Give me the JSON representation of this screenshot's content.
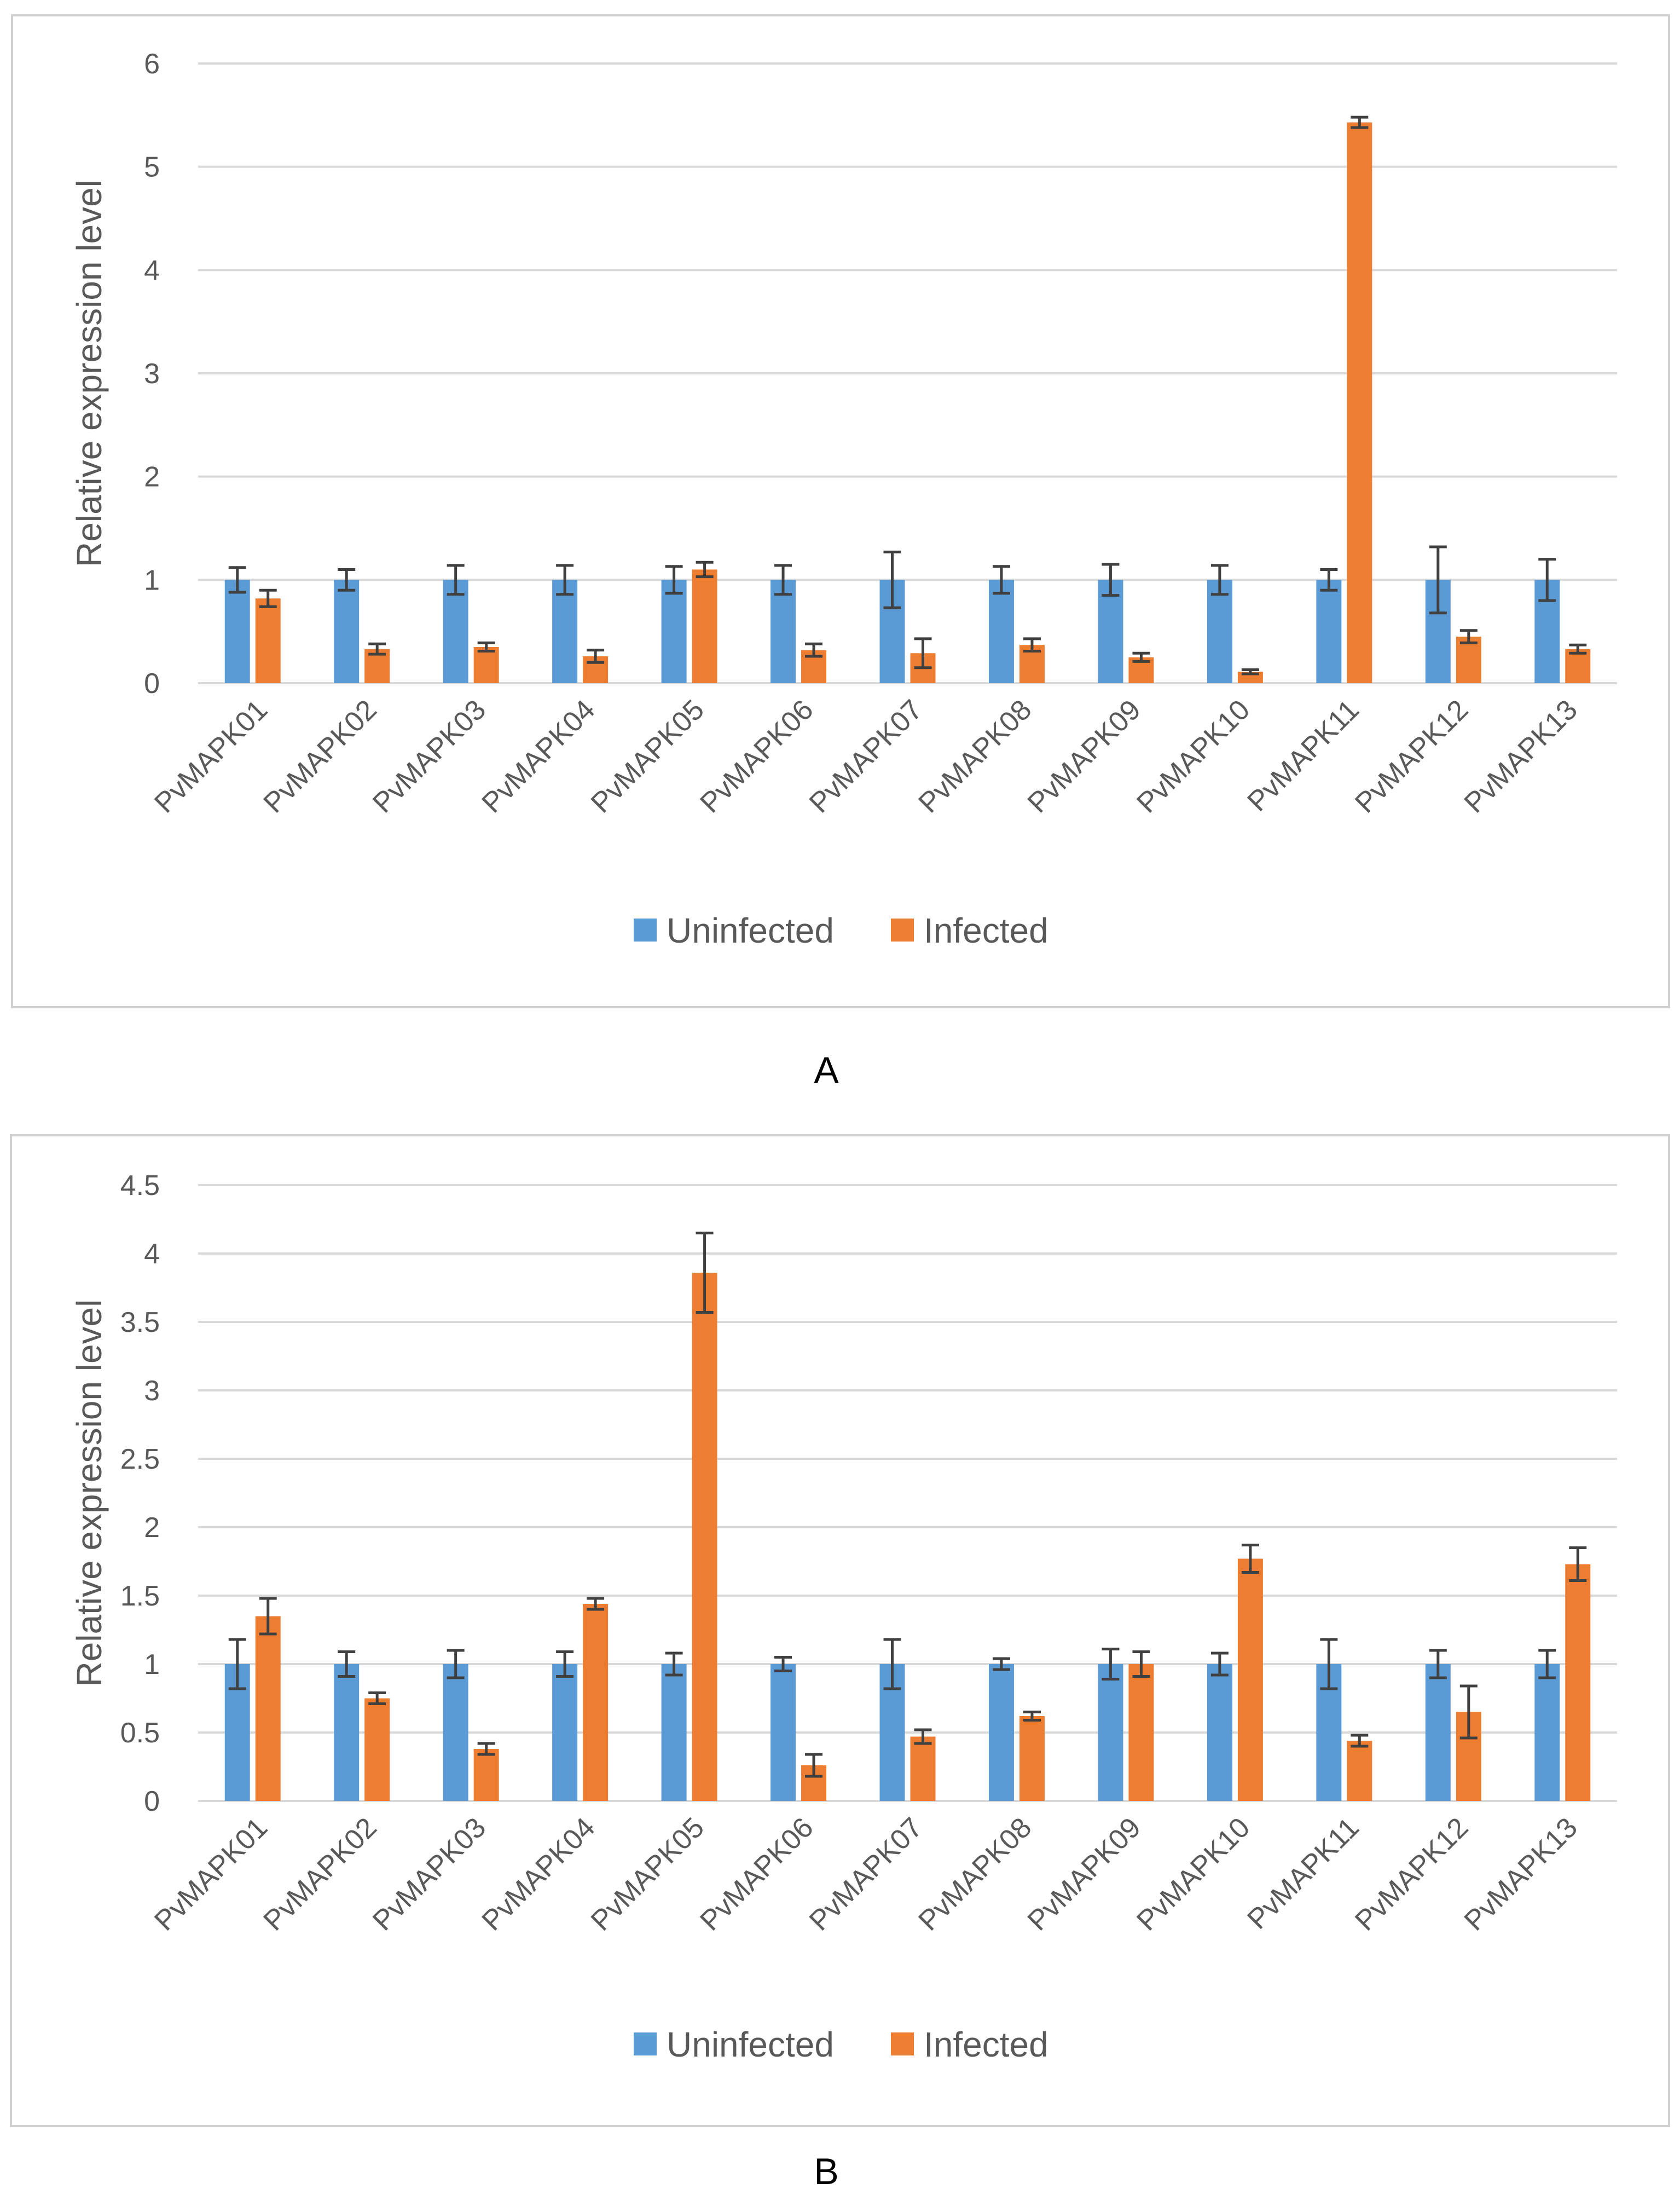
{
  "colors": {
    "uninfected": "#5b9bd5",
    "infected": "#ed7d31"
  },
  "chart_data": [
    {
      "type": "bar",
      "panel_label": "A",
      "ylabel": "Relative expression level",
      "ylim": [
        0,
        6
      ],
      "yticks": [
        "0",
        "1",
        "2",
        "3",
        "4",
        "5",
        "6"
      ],
      "grid": true,
      "legend": "bottom",
      "categories": [
        "PvMAPK01",
        "PvMAPK02",
        "PvMAPK03",
        "PvMAPK04",
        "PvMAPK05",
        "PvMAPK06",
        "PvMAPK07",
        "PvMAPK08",
        "PvMAPK09",
        "PvMAPK10",
        "PvMAPK11",
        "PvMAPK12",
        "PvMAPK13"
      ],
      "series": [
        {
          "name": "Uninfected",
          "values": [
            1,
            1,
            1,
            1,
            1,
            1,
            1,
            1,
            1,
            1,
            1,
            1,
            1
          ],
          "errors": [
            0.12,
            0.1,
            0.14,
            0.14,
            0.13,
            0.14,
            0.27,
            0.13,
            0.15,
            0.14,
            0.1,
            0.32,
            0.2
          ]
        },
        {
          "name": "Infected",
          "values": [
            0.82,
            0.33,
            0.35,
            0.26,
            1.1,
            0.32,
            0.29,
            0.37,
            0.25,
            0.11,
            5.43,
            0.45,
            0.33
          ],
          "errors": [
            0.08,
            0.05,
            0.04,
            0.06,
            0.07,
            0.06,
            0.14,
            0.06,
            0.04,
            0.02,
            0.05,
            0.06,
            0.04
          ]
        }
      ]
    },
    {
      "type": "bar",
      "panel_label": "B",
      "ylabel": "Relative expression level",
      "ylim": [
        0,
        4.5
      ],
      "yticks": [
        "0",
        "0.5",
        "1",
        "1.5",
        "2",
        "2.5",
        "3",
        "3.5",
        "4",
        "4.5"
      ],
      "grid": true,
      "legend": "bottom",
      "categories": [
        "PvMAPK01",
        "PvMAPK02",
        "PvMAPK03",
        "PvMAPK04",
        "PvMAPK05",
        "PvMAPK06",
        "PvMAPK07",
        "PvMAPK08",
        "PvMAPK09",
        "PvMAPK10",
        "PvMAPK11",
        "PvMAPK12",
        "PvMAPK13"
      ],
      "series": [
        {
          "name": "Uninfected",
          "values": [
            1,
            1,
            1,
            1,
            1,
            1,
            1,
            1,
            1,
            1,
            1,
            1,
            1
          ],
          "errors": [
            0.18,
            0.09,
            0.1,
            0.09,
            0.08,
            0.05,
            0.18,
            0.04,
            0.11,
            0.08,
            0.18,
            0.1,
            0.1
          ]
        },
        {
          "name": "Infected",
          "values": [
            1.35,
            0.75,
            0.38,
            1.44,
            3.86,
            0.26,
            0.47,
            0.62,
            1.0,
            1.77,
            0.44,
            0.65,
            1.73
          ],
          "errors": [
            0.13,
            0.04,
            0.04,
            0.04,
            0.29,
            0.08,
            0.05,
            0.03,
            0.09,
            0.1,
            0.04,
            0.19,
            0.12
          ]
        }
      ]
    }
  ]
}
